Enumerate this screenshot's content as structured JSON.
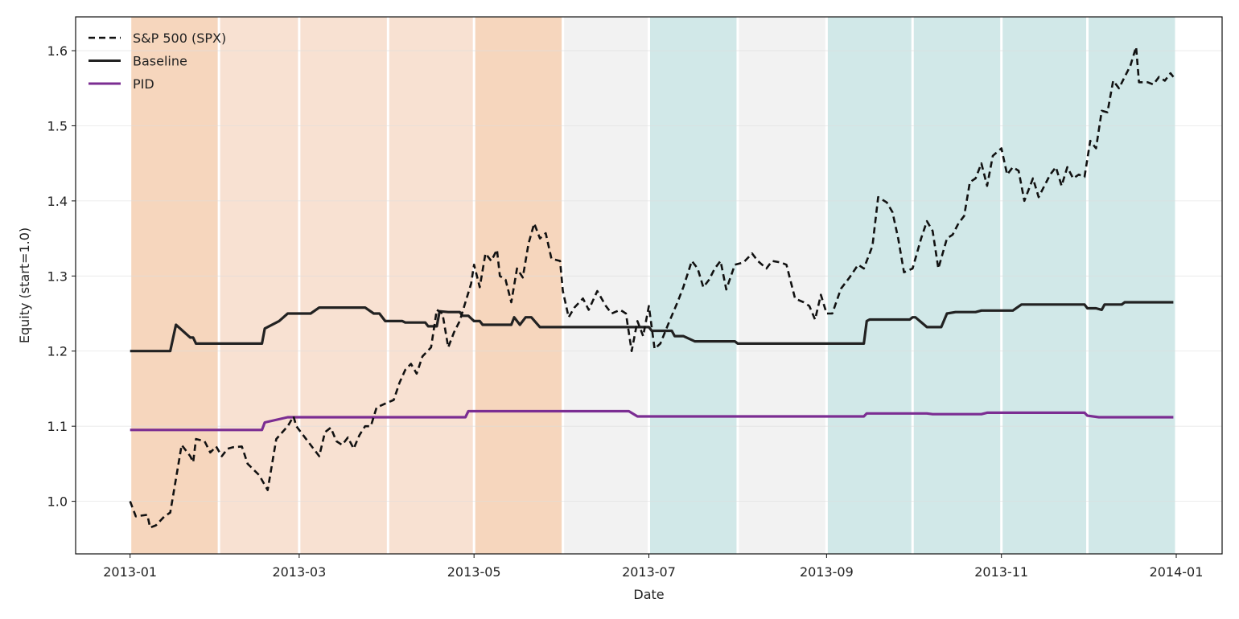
{
  "chart_data": {
    "type": "line",
    "xlabel": "Date",
    "ylabel": "Equity (start=1.0)",
    "x_ticks": [
      "2013-01",
      "2013-03",
      "2013-05",
      "2013-07",
      "2013-09",
      "2013-11",
      "2014-01"
    ],
    "y_ticks": [
      "1.0",
      "1.1",
      "1.2",
      "1.3",
      "1.4",
      "1.5",
      "1.6"
    ],
    "xlim": [
      "2012-12-13",
      "2014-01-17"
    ],
    "ylim": [
      0.93,
      1.645
    ],
    "grid": "y",
    "legend_position": "top-left",
    "regime_bands": [
      {
        "start": "2013-01-01",
        "end": "2013-01-31",
        "color": "#f6d6bd"
      },
      {
        "start": "2013-02-01",
        "end": "2013-02-28",
        "color": "#f8e1d2"
      },
      {
        "start": "2013-03-01",
        "end": "2013-03-31",
        "color": "#f8e1d2"
      },
      {
        "start": "2013-04-01",
        "end": "2013-04-30",
        "color": "#f8e1d2"
      },
      {
        "start": "2013-05-01",
        "end": "2013-05-31",
        "color": "#f6d6bd"
      },
      {
        "start": "2013-06-01",
        "end": "2013-06-30",
        "color": "#f2f2f2"
      },
      {
        "start": "2013-07-01",
        "end": "2013-07-31",
        "color": "#d1e8e8"
      },
      {
        "start": "2013-08-01",
        "end": "2013-08-31",
        "color": "#f2f2f2"
      },
      {
        "start": "2013-09-01",
        "end": "2013-09-30",
        "color": "#d1e8e8"
      },
      {
        "start": "2013-10-01",
        "end": "2013-10-31",
        "color": "#d1e8e8"
      },
      {
        "start": "2013-11-01",
        "end": "2013-11-30",
        "color": "#d1e8e8"
      },
      {
        "start": "2013-12-01",
        "end": "2013-12-31",
        "color": "#d1e8e8"
      }
    ],
    "series": [
      {
        "name": "S&P 500 (SPX)",
        "color": "#111111",
        "dash": "dashed",
        "points": [
          [
            "2013-01-01",
            1.0
          ],
          [
            "2013-01-03",
            0.98
          ],
          [
            "2013-01-07",
            0.982
          ],
          [
            "2013-01-08",
            0.965
          ],
          [
            "2013-01-10",
            0.968
          ],
          [
            "2013-01-13",
            0.98
          ],
          [
            "2013-01-15",
            0.985
          ],
          [
            "2013-01-19",
            1.075
          ],
          [
            "2013-01-22",
            1.06
          ],
          [
            "2013-01-23",
            1.052
          ],
          [
            "2013-01-24",
            1.083
          ],
          [
            "2013-01-27",
            1.08
          ],
          [
            "2013-01-29",
            1.065
          ],
          [
            "2013-01-31",
            1.073
          ],
          [
            "2013-02-02",
            1.06
          ],
          [
            "2013-02-04",
            1.07
          ],
          [
            "2013-02-06",
            1.072
          ],
          [
            "2013-02-09",
            1.073
          ],
          [
            "2013-02-11",
            1.05
          ],
          [
            "2013-02-15",
            1.035
          ],
          [
            "2013-02-18",
            1.015
          ],
          [
            "2013-02-21",
            1.083
          ],
          [
            "2013-02-25",
            1.1
          ],
          [
            "2013-02-27",
            1.113
          ],
          [
            "2013-02-28",
            1.1
          ],
          [
            "2013-03-03",
            1.085
          ],
          [
            "2013-03-06",
            1.07
          ],
          [
            "2013-03-08",
            1.06
          ],
          [
            "2013-03-10",
            1.092
          ],
          [
            "2013-03-12",
            1.098
          ],
          [
            "2013-03-14",
            1.08
          ],
          [
            "2013-03-16",
            1.075
          ],
          [
            "2013-03-18",
            1.085
          ],
          [
            "2013-03-20",
            1.07
          ],
          [
            "2013-03-22",
            1.088
          ],
          [
            "2013-03-24",
            1.1
          ],
          [
            "2013-03-26",
            1.1
          ],
          [
            "2013-03-28",
            1.125
          ],
          [
            "2013-03-31",
            1.13
          ],
          [
            "2013-04-03",
            1.135
          ],
          [
            "2013-04-05",
            1.158
          ],
          [
            "2013-04-07",
            1.175
          ],
          [
            "2013-04-09",
            1.183
          ],
          [
            "2013-04-11",
            1.17
          ],
          [
            "2013-04-13",
            1.193
          ],
          [
            "2013-04-16",
            1.205
          ],
          [
            "2013-04-18",
            1.255
          ],
          [
            "2013-04-20",
            1.25
          ],
          [
            "2013-04-22",
            1.205
          ],
          [
            "2013-04-24",
            1.225
          ],
          [
            "2013-04-26",
            1.24
          ],
          [
            "2013-04-28",
            1.265
          ],
          [
            "2013-04-30",
            1.29
          ],
          [
            "2013-05-01",
            1.315
          ],
          [
            "2013-05-03",
            1.285
          ],
          [
            "2013-05-05",
            1.33
          ],
          [
            "2013-05-07",
            1.32
          ],
          [
            "2013-05-09",
            1.335
          ],
          [
            "2013-05-10",
            1.3
          ],
          [
            "2013-05-12",
            1.295
          ],
          [
            "2013-05-14",
            1.265
          ],
          [
            "2013-05-16",
            1.31
          ],
          [
            "2013-05-18",
            1.298
          ],
          [
            "2013-05-20",
            1.343
          ],
          [
            "2013-05-22",
            1.37
          ],
          [
            "2013-05-24",
            1.35
          ],
          [
            "2013-05-26",
            1.357
          ],
          [
            "2013-05-28",
            1.323
          ],
          [
            "2013-05-31",
            1.32
          ],
          [
            "2013-06-01",
            1.28
          ],
          [
            "2013-06-03",
            1.245
          ],
          [
            "2013-06-05",
            1.258
          ],
          [
            "2013-06-08",
            1.27
          ],
          [
            "2013-06-10",
            1.255
          ],
          [
            "2013-06-13",
            1.28
          ],
          [
            "2013-06-16",
            1.26
          ],
          [
            "2013-06-18",
            1.25
          ],
          [
            "2013-06-21",
            1.255
          ],
          [
            "2013-06-23",
            1.25
          ],
          [
            "2013-06-25",
            1.2
          ],
          [
            "2013-06-27",
            1.24
          ],
          [
            "2013-06-29",
            1.22
          ],
          [
            "2013-07-01",
            1.26
          ],
          [
            "2013-07-03",
            1.203
          ],
          [
            "2013-07-05",
            1.21
          ],
          [
            "2013-07-08",
            1.238
          ],
          [
            "2013-07-11",
            1.265
          ],
          [
            "2013-07-13",
            1.285
          ],
          [
            "2013-07-16",
            1.32
          ],
          [
            "2013-07-18",
            1.31
          ],
          [
            "2013-07-20",
            1.285
          ],
          [
            "2013-07-22",
            1.295
          ],
          [
            "2013-07-24",
            1.31
          ],
          [
            "2013-07-26",
            1.32
          ],
          [
            "2013-07-28",
            1.282
          ],
          [
            "2013-07-31",
            1.315
          ],
          [
            "2013-08-03",
            1.318
          ],
          [
            "2013-08-06",
            1.33
          ],
          [
            "2013-08-08",
            1.32
          ],
          [
            "2013-08-11",
            1.31
          ],
          [
            "2013-08-13",
            1.32
          ],
          [
            "2013-08-16",
            1.318
          ],
          [
            "2013-08-18",
            1.315
          ],
          [
            "2013-08-21",
            1.27
          ],
          [
            "2013-08-24",
            1.265
          ],
          [
            "2013-08-26",
            1.26
          ],
          [
            "2013-08-28",
            1.242
          ],
          [
            "2013-08-30",
            1.275
          ],
          [
            "2013-09-01",
            1.25
          ],
          [
            "2013-09-03",
            1.25
          ],
          [
            "2013-09-06",
            1.283
          ],
          [
            "2013-09-09",
            1.298
          ],
          [
            "2013-09-12",
            1.315
          ],
          [
            "2013-09-14",
            1.31
          ],
          [
            "2013-09-17",
            1.34
          ],
          [
            "2013-09-19",
            1.405
          ],
          [
            "2013-09-22",
            1.398
          ],
          [
            "2013-09-24",
            1.385
          ],
          [
            "2013-09-26",
            1.35
          ],
          [
            "2013-09-28",
            1.305
          ],
          [
            "2013-10-01",
            1.31
          ],
          [
            "2013-10-04",
            1.35
          ],
          [
            "2013-10-06",
            1.373
          ],
          [
            "2013-10-08",
            1.36
          ],
          [
            "2013-10-10",
            1.31
          ],
          [
            "2013-10-13",
            1.35
          ],
          [
            "2013-10-15",
            1.355
          ],
          [
            "2013-10-17",
            1.37
          ],
          [
            "2013-10-19",
            1.38
          ],
          [
            "2013-10-21",
            1.425
          ],
          [
            "2013-10-23",
            1.43
          ],
          [
            "2013-10-25",
            1.45
          ],
          [
            "2013-10-27",
            1.42
          ],
          [
            "2013-10-29",
            1.46
          ],
          [
            "2013-11-01",
            1.47
          ],
          [
            "2013-11-03",
            1.435
          ],
          [
            "2013-11-05",
            1.445
          ],
          [
            "2013-11-07",
            1.44
          ],
          [
            "2013-11-09",
            1.4
          ],
          [
            "2013-11-12",
            1.43
          ],
          [
            "2013-11-14",
            1.405
          ],
          [
            "2013-11-16",
            1.42
          ],
          [
            "2013-11-18",
            1.435
          ],
          [
            "2013-11-20",
            1.445
          ],
          [
            "2013-11-22",
            1.42
          ],
          [
            "2013-11-24",
            1.445
          ],
          [
            "2013-11-26",
            1.43
          ],
          [
            "2013-11-28",
            1.435
          ],
          [
            "2013-11-30",
            1.432
          ],
          [
            "2013-12-02",
            1.48
          ],
          [
            "2013-12-04",
            1.47
          ],
          [
            "2013-12-06",
            1.52
          ],
          [
            "2013-12-08",
            1.518
          ],
          [
            "2013-12-10",
            1.56
          ],
          [
            "2013-12-12",
            1.55
          ],
          [
            "2013-12-14",
            1.565
          ],
          [
            "2013-12-16",
            1.58
          ],
          [
            "2013-12-18",
            1.605
          ],
          [
            "2013-12-19",
            1.558
          ],
          [
            "2013-12-22",
            1.558
          ],
          [
            "2013-12-24",
            1.555
          ],
          [
            "2013-12-26",
            1.565
          ],
          [
            "2013-12-28",
            1.56
          ],
          [
            "2013-12-30",
            1.57
          ],
          [
            "2013-12-31",
            1.565
          ]
        ]
      },
      {
        "name": "Baseline",
        "color": "#222222",
        "dash": "solid",
        "points": [
          [
            "2013-01-01",
            1.2
          ],
          [
            "2013-01-15",
            1.2
          ],
          [
            "2013-01-17",
            1.235
          ],
          [
            "2013-01-22",
            1.218
          ],
          [
            "2013-01-23",
            1.218
          ],
          [
            "2013-01-24",
            1.21
          ],
          [
            "2013-02-16",
            1.21
          ],
          [
            "2013-02-17",
            1.23
          ],
          [
            "2013-02-22",
            1.24
          ],
          [
            "2013-02-25",
            1.25
          ],
          [
            "2013-03-05",
            1.25
          ],
          [
            "2013-03-08",
            1.258
          ],
          [
            "2013-03-24",
            1.258
          ],
          [
            "2013-03-27",
            1.25
          ],
          [
            "2013-03-29",
            1.25
          ],
          [
            "2013-03-31",
            1.24
          ],
          [
            "2013-04-06",
            1.24
          ],
          [
            "2013-04-07",
            1.238
          ],
          [
            "2013-04-14",
            1.238
          ],
          [
            "2013-04-15",
            1.233
          ],
          [
            "2013-04-18",
            1.233
          ],
          [
            "2013-04-19",
            1.253
          ],
          [
            "2013-04-22",
            1.252
          ],
          [
            "2013-04-26",
            1.252
          ],
          [
            "2013-04-27",
            1.247
          ],
          [
            "2013-04-29",
            1.247
          ],
          [
            "2013-05-01",
            1.24
          ],
          [
            "2013-05-03",
            1.24
          ],
          [
            "2013-05-04",
            1.235
          ],
          [
            "2013-05-14",
            1.235
          ],
          [
            "2013-05-15",
            1.245
          ],
          [
            "2013-05-17",
            1.235
          ],
          [
            "2013-05-19",
            1.245
          ],
          [
            "2013-05-21",
            1.245
          ],
          [
            "2013-05-24",
            1.232
          ],
          [
            "2013-07-01",
            1.232
          ],
          [
            "2013-07-02",
            1.227
          ],
          [
            "2013-07-09",
            1.227
          ],
          [
            "2013-07-10",
            1.22
          ],
          [
            "2013-07-13",
            1.22
          ],
          [
            "2013-07-17",
            1.213
          ],
          [
            "2013-07-31",
            1.213
          ],
          [
            "2013-08-01",
            1.21
          ],
          [
            "2013-09-14",
            1.21
          ],
          [
            "2013-09-15",
            1.24
          ],
          [
            "2013-09-16",
            1.242
          ],
          [
            "2013-09-30",
            1.242
          ],
          [
            "2013-10-01",
            1.245
          ],
          [
            "2013-10-02",
            1.245
          ],
          [
            "2013-10-06",
            1.232
          ],
          [
            "2013-10-11",
            1.232
          ],
          [
            "2013-10-13",
            1.25
          ],
          [
            "2013-10-16",
            1.252
          ],
          [
            "2013-10-23",
            1.252
          ],
          [
            "2013-10-25",
            1.254
          ],
          [
            "2013-11-05",
            1.254
          ],
          [
            "2013-11-08",
            1.262
          ],
          [
            "2013-11-30",
            1.262
          ],
          [
            "2013-12-01",
            1.257
          ],
          [
            "2013-12-04",
            1.257
          ],
          [
            "2013-12-06",
            1.255
          ],
          [
            "2013-12-07",
            1.262
          ],
          [
            "2013-12-13",
            1.262
          ],
          [
            "2013-12-14",
            1.265
          ],
          [
            "2013-12-31",
            1.265
          ]
        ]
      },
      {
        "name": "PID",
        "color": "#7b2d92",
        "dash": "solid",
        "points": [
          [
            "2013-01-01",
            1.095
          ],
          [
            "2013-02-16",
            1.095
          ],
          [
            "2013-02-17",
            1.105
          ],
          [
            "2013-02-25",
            1.112
          ],
          [
            "2013-04-28",
            1.112
          ],
          [
            "2013-04-29",
            1.12
          ],
          [
            "2013-06-24",
            1.12
          ],
          [
            "2013-06-27",
            1.113
          ],
          [
            "2013-09-14",
            1.113
          ],
          [
            "2013-09-15",
            1.117
          ],
          [
            "2013-10-06",
            1.117
          ],
          [
            "2013-10-08",
            1.116
          ],
          [
            "2013-10-25",
            1.116
          ],
          [
            "2013-10-27",
            1.118
          ],
          [
            "2013-11-30",
            1.118
          ],
          [
            "2013-12-01",
            1.114
          ],
          [
            "2013-12-05",
            1.112
          ],
          [
            "2013-12-31",
            1.112
          ]
        ]
      }
    ]
  }
}
